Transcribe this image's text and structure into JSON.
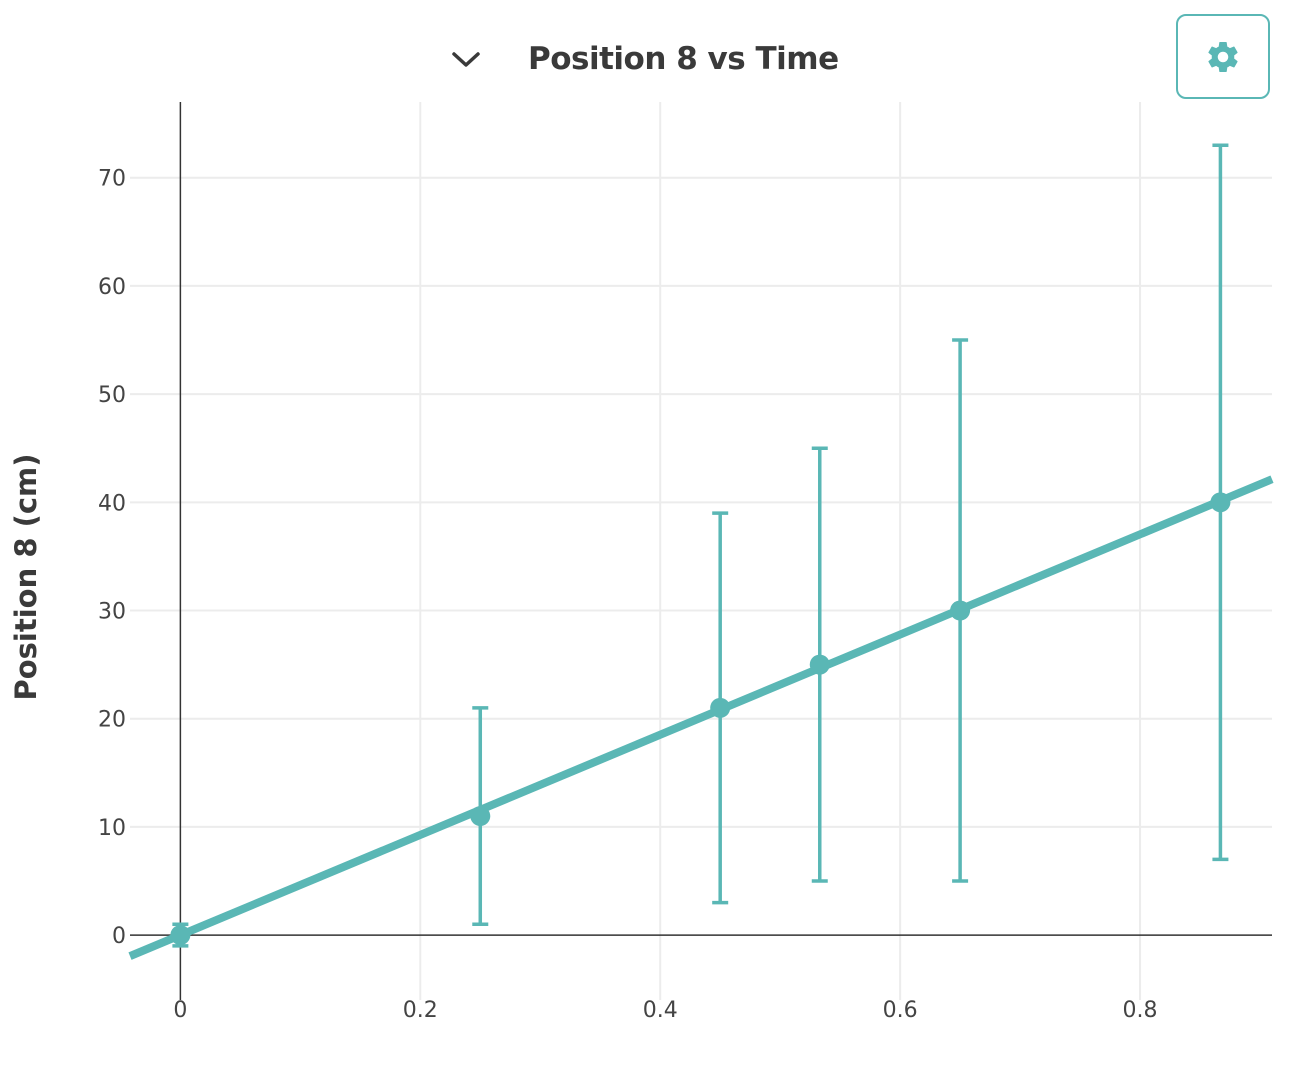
{
  "header": {
    "title": "Position 8 vs Time",
    "collapse_icon": "chevron-down-icon",
    "settings_icon": "gear-icon"
  },
  "colors": {
    "series": "#5ab7b5",
    "grid": "#ececec",
    "axis": "#333333",
    "text": "#444444"
  },
  "chart_data": {
    "type": "scatter",
    "title": "Position 8 vs Time",
    "xlabel": "",
    "ylabel": "Position 8 (cm)",
    "xlim": [
      -0.042,
      0.91
    ],
    "ylim": [
      -6,
      77
    ],
    "xticks": [
      0,
      0.2,
      0.4,
      0.6,
      0.8
    ],
    "xtick_labels": [
      "0",
      "0.2",
      "0.4",
      "0.6",
      "0.8"
    ],
    "yticks": [
      0,
      10,
      20,
      30,
      40,
      50,
      60,
      70
    ],
    "ytick_labels": [
      "0",
      "10",
      "20",
      "30",
      "40",
      "50",
      "60",
      "70"
    ],
    "grid": true,
    "series": [
      {
        "points": [
          {
            "x": 0,
            "y": 0,
            "err_low": -1,
            "err_high": 1
          },
          {
            "x": 0.25,
            "y": 11,
            "err_low": 1,
            "err_high": 21
          },
          {
            "x": 0.45,
            "y": 21,
            "err_low": 3,
            "err_high": 39
          },
          {
            "x": 0.533,
            "y": 25,
            "err_low": 5,
            "err_high": 45
          },
          {
            "x": 0.65,
            "y": 30,
            "err_low": 5,
            "err_high": 55
          },
          {
            "x": 0.867,
            "y": 40,
            "err_low": 7,
            "err_high": 73
          }
        ]
      }
    ],
    "fit_line": {
      "slope": 46.3,
      "intercept": 0
    }
  }
}
